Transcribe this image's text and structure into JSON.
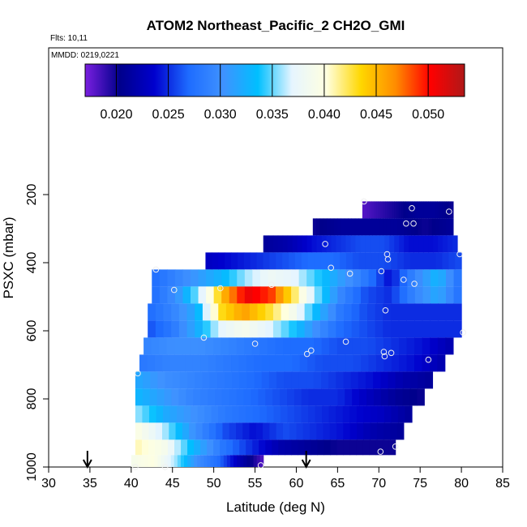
{
  "chart_data": {
    "type": "heatmap",
    "title": "ATOM2 Northeast_Pacific_2 CH2O_GMI",
    "subtitle_flights": "Flts: 10,11",
    "subtitle_dates": "MMDD: 0219,0221",
    "xlabel": "Latitude (deg N)",
    "ylabel": "PSXC (mbar)",
    "xlim": [
      30,
      85
    ],
    "ylim": [
      1000,
      50
    ],
    "x_ticks": [
      "30",
      "35",
      "40",
      "45",
      "50",
      "55",
      "60",
      "65",
      "70",
      "75",
      "80",
      "85"
    ],
    "y_ticks": [
      "200",
      "400",
      "600",
      "800",
      "1000"
    ],
    "colorbar": {
      "min": 0.017,
      "max": 0.0535,
      "tick_labels": [
        "0.020",
        "0.025",
        "0.030",
        "0.035",
        "0.040",
        "0.045",
        "0.050"
      ],
      "colors": [
        "#7a1fe0",
        "#00008b",
        "#0000cd",
        "#1e6cff",
        "#3f92ff",
        "#00bfff",
        "#e6f5ff",
        "#ffffe0",
        "#ffd700",
        "#ff8c00",
        "#ff0000",
        "#b01818"
      ]
    },
    "rows": [
      {
        "p_top": 220,
        "p_bot": 270,
        "x0": 68.0,
        "x1": 79.0,
        "values": [
          0.018,
          0.019,
          0.02,
          0.021,
          0.021,
          0.02
        ]
      },
      {
        "p_top": 270,
        "p_bot": 320,
        "x0": 62.0,
        "x1": 79.0,
        "values": [
          0.02,
          0.021,
          0.021,
          0.021,
          0.02,
          0.021
        ]
      },
      {
        "p_top": 320,
        "p_bot": 370,
        "x0": 56.0,
        "x1": 79.5,
        "values": [
          0.021,
          0.022,
          0.024,
          0.025,
          0.026,
          0.026,
          0.024,
          0.024,
          0.025
        ]
      },
      {
        "p_top": 370,
        "p_bot": 420,
        "x0": 49.0,
        "x1": 80.0,
        "values": [
          0.023,
          0.024,
          0.025,
          0.026,
          0.027,
          0.027,
          0.026,
          0.026,
          0.025,
          0.025,
          0.026
        ]
      },
      {
        "p_top": 420,
        "p_bot": 470,
        "x0": 42.5,
        "x1": 80.0,
        "values": [
          0.027,
          0.029,
          0.031,
          0.033,
          0.036,
          0.038,
          0.037,
          0.034,
          0.031,
          0.028,
          0.024,
          0.029,
          0.033,
          0.027
        ]
      },
      {
        "p_top": 470,
        "p_bot": 520,
        "x0": 42.5,
        "x1": 80.0,
        "values": [
          0.027,
          0.03,
          0.036,
          0.045,
          0.051,
          0.049,
          0.042,
          0.035,
          0.029,
          0.026,
          0.025,
          0.029,
          0.032,
          0.027
        ]
      },
      {
        "p_top": 520,
        "p_bot": 570,
        "x0": 42.0,
        "x1": 80.0,
        "values": [
          0.027,
          0.029,
          0.032,
          0.043,
          0.046,
          0.043,
          0.039,
          0.033,
          0.028,
          0.026,
          0.025,
          0.025,
          0.025,
          0.025
        ]
      },
      {
        "p_top": 570,
        "p_bot": 620,
        "x0": 42.0,
        "x1": 80.0,
        "values": [
          0.026,
          0.028,
          0.032,
          0.037,
          0.039,
          0.037,
          0.034,
          0.03,
          0.027,
          0.026,
          0.025,
          0.025,
          0.025,
          0.025
        ]
      },
      {
        "p_top": 620,
        "p_bot": 670,
        "x0": 41.5,
        "x1": 79.0,
        "values": [
          0.029,
          0.03,
          0.03,
          0.029,
          0.028,
          0.027,
          0.027,
          0.026,
          0.026,
          0.025,
          0.024,
          0.022
        ]
      },
      {
        "p_top": 670,
        "p_bot": 720,
        "x0": 41.0,
        "x1": 78.0,
        "values": [
          0.028,
          0.029,
          0.029,
          0.028,
          0.027,
          0.027,
          0.026,
          0.026,
          0.025,
          0.024,
          0.022
        ]
      },
      {
        "p_top": 720,
        "p_bot": 770,
        "x0": 40.5,
        "x1": 76.5,
        "values": [
          0.032,
          0.03,
          0.029,
          0.028,
          0.027,
          0.026,
          0.026,
          0.025,
          0.024,
          0.022,
          0.021
        ]
      },
      {
        "p_top": 770,
        "p_bot": 820,
        "x0": 40.5,
        "x1": 75.5,
        "values": [
          0.033,
          0.031,
          0.029,
          0.028,
          0.027,
          0.026,
          0.025,
          0.025,
          0.023,
          0.021,
          0.02
        ]
      },
      {
        "p_top": 820,
        "p_bot": 870,
        "x0": 40.5,
        "x1": 74.0,
        "values": [
          0.036,
          0.032,
          0.03,
          0.028,
          0.027,
          0.026,
          0.025,
          0.024,
          0.023,
          0.021
        ]
      },
      {
        "p_top": 870,
        "p_bot": 920,
        "x0": 40.5,
        "x1": 73.0,
        "values": [
          0.04,
          0.036,
          0.03,
          0.026,
          0.024,
          0.026,
          0.025,
          0.024,
          0.022,
          0.021
        ]
      },
      {
        "p_top": 920,
        "p_bot": 965,
        "x0": 40.5,
        "x1": 72.0,
        "values": [
          0.041,
          0.039,
          0.033,
          0.028,
          0.025,
          0.022,
          0.021,
          0.02,
          0.02,
          0.02
        ]
      },
      {
        "p_top": 965,
        "p_bot": 1010,
        "x0": 40.0,
        "x1": 56.0,
        "values": [
          0.039,
          0.04,
          0.036,
          0.03,
          0.027,
          0.022,
          0.018
        ]
      }
    ],
    "points": [
      {
        "x": 68.2,
        "y": 220
      },
      {
        "x": 74.0,
        "y": 240
      },
      {
        "x": 78.5,
        "y": 250
      },
      {
        "x": 73.3,
        "y": 285
      },
      {
        "x": 74.2,
        "y": 285
      },
      {
        "x": 63.5,
        "y": 345
      },
      {
        "x": 71.0,
        "y": 375
      },
      {
        "x": 71.1,
        "y": 390
      },
      {
        "x": 79.8,
        "y": 375
      },
      {
        "x": 43.0,
        "y": 420
      },
      {
        "x": 64.2,
        "y": 415
      },
      {
        "x": 66.5,
        "y": 432
      },
      {
        "x": 70.3,
        "y": 425
      },
      {
        "x": 73.0,
        "y": 450
      },
      {
        "x": 74.3,
        "y": 462
      },
      {
        "x": 57.0,
        "y": 465
      },
      {
        "x": 45.2,
        "y": 480
      },
      {
        "x": 50.8,
        "y": 475
      },
      {
        "x": 70.8,
        "y": 540
      },
      {
        "x": 48.8,
        "y": 620
      },
      {
        "x": 80.2,
        "y": 605
      },
      {
        "x": 55.0,
        "y": 638
      },
      {
        "x": 66.0,
        "y": 632
      },
      {
        "x": 61.8,
        "y": 658
      },
      {
        "x": 61.3,
        "y": 668
      },
      {
        "x": 70.6,
        "y": 662
      },
      {
        "x": 70.7,
        "y": 675
      },
      {
        "x": 71.5,
        "y": 665
      },
      {
        "x": 76.0,
        "y": 685
      },
      {
        "x": 40.8,
        "y": 725
      },
      {
        "x": 72.0,
        "y": 940
      },
      {
        "x": 70.2,
        "y": 955
      },
      {
        "x": 40.5,
        "y": 1000
      },
      {
        "x": 44.1,
        "y": 1000
      },
      {
        "x": 55.7,
        "y": 995
      }
    ],
    "markers_x": [
      34.7,
      61.2
    ],
    "grid": false
  }
}
